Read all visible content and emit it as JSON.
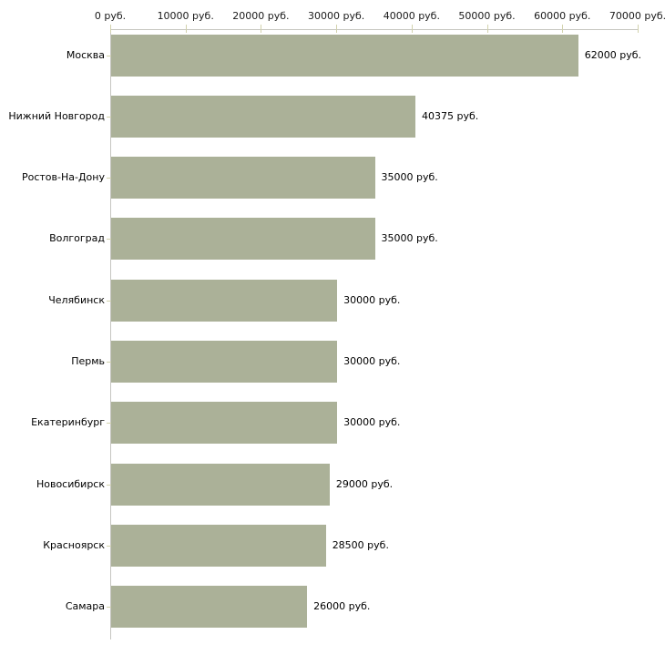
{
  "chart_data": {
    "type": "bar",
    "orientation": "horizontal",
    "title": "",
    "xlabel": "",
    "ylabel": "",
    "unit": "руб.",
    "categories": [
      "Москва",
      "Нижний Новгород",
      "Ростов-На-Дону",
      "Волгоград",
      "Челябинск",
      "Пермь",
      "Екатеринбург",
      "Новосибирск",
      "Красноярск",
      "Самара"
    ],
    "values": [
      62000,
      40375,
      35000,
      35000,
      30000,
      30000,
      30000,
      29000,
      28500,
      26000
    ],
    "value_labels": [
      "62000 руб.",
      "40375 руб.",
      "35000 руб.",
      "35000 руб.",
      "30000 руб.",
      "30000 руб.",
      "30000 руб.",
      "29000 руб.",
      "28500 руб.",
      "26000 руб."
    ],
    "x_tick_values": [
      0,
      10000,
      20000,
      30000,
      40000,
      50000,
      60000,
      70000
    ],
    "x_tick_labels": [
      "0 руб.",
      "10000 руб.",
      "20000 руб.",
      "30000 руб.",
      "40000 руб.",
      "50000 руб.",
      "60000 руб.",
      "70000 руб."
    ],
    "xlim": [
      0,
      70000
    ],
    "grid": false,
    "legend": false,
    "colors": {
      "bar": "#abb198",
      "axis": "#c6c6c0",
      "tick": "#d2d2ac",
      "text": "#000000",
      "background": "#ffffff"
    }
  }
}
